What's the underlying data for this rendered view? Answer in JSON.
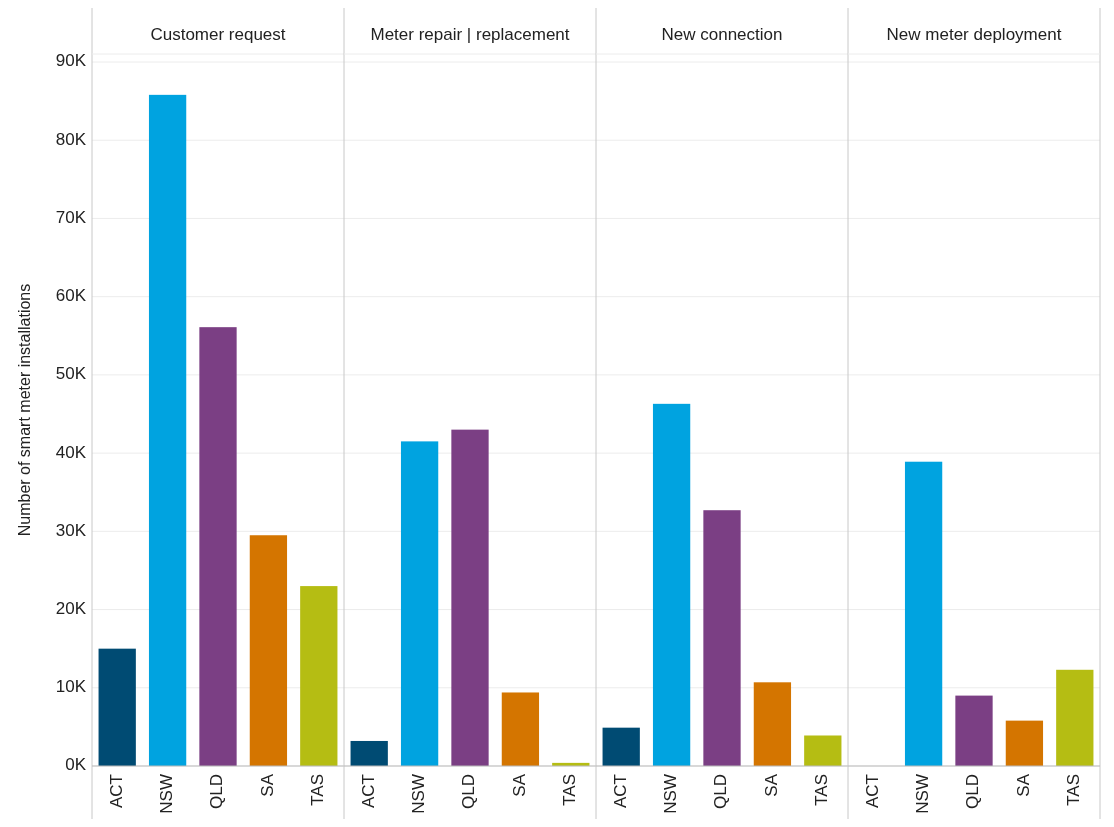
{
  "chart_data": [
    {
      "type": "bar",
      "title": "Customer request",
      "ylabel": "Number of smart meter installations",
      "categories": [
        "ACT",
        "NSW",
        "QLD",
        "SA",
        "TAS"
      ],
      "values": [
        15000,
        85800,
        56100,
        29500,
        23000
      ],
      "colors": [
        "#004b73",
        "#00a3e0",
        "#7b3f84",
        "#d47500",
        "#b5bd13"
      ],
      "ylim": [
        0,
        90000
      ],
      "yticks": [
        {
          "value": 0,
          "label": "0K"
        },
        {
          "value": 10000,
          "label": "10K"
        },
        {
          "value": 20000,
          "label": "20K"
        },
        {
          "value": 30000,
          "label": "30K"
        },
        {
          "value": 40000,
          "label": "40K"
        },
        {
          "value": 50000,
          "label": "50K"
        },
        {
          "value": 60000,
          "label": "60K"
        },
        {
          "value": 70000,
          "label": "70K"
        },
        {
          "value": 80000,
          "label": "80K"
        },
        {
          "value": 90000,
          "label": "90K"
        }
      ],
      "grid": "y"
    },
    {
      "type": "bar",
      "title": "Meter repair | replacement",
      "categories": [
        "ACT",
        "NSW",
        "QLD",
        "SA",
        "TAS"
      ],
      "values": [
        3200,
        41500,
        43000,
        9400,
        400
      ],
      "colors": [
        "#004b73",
        "#00a3e0",
        "#7b3f84",
        "#d47500",
        "#b5bd13"
      ],
      "ylim": [
        0,
        90000
      ],
      "yticks": [
        {
          "value": 0,
          "label": null
        },
        {
          "value": 10000,
          "label": null
        },
        {
          "value": 20000,
          "label": null
        },
        {
          "value": 30000,
          "label": null
        },
        {
          "value": 40000,
          "label": null
        },
        {
          "value": 50000,
          "label": null
        },
        {
          "value": 60000,
          "label": null
        },
        {
          "value": 70000,
          "label": null
        },
        {
          "value": 80000,
          "label": null
        },
        {
          "value": 90000,
          "label": null
        }
      ],
      "grid": "y",
      "tick_labels": "x"
    },
    {
      "type": "bar",
      "title": "New connection",
      "categories": [
        "ACT",
        "NSW",
        "QLD",
        "SA",
        "TAS"
      ],
      "values": [
        4900,
        46300,
        32700,
        10700,
        3900
      ],
      "colors": [
        "#004b73",
        "#00a3e0",
        "#7b3f84",
        "#d47500",
        "#b5bd13"
      ],
      "ylim": [
        0,
        90000
      ],
      "yticks": [
        {
          "value": 0,
          "label": null
        },
        {
          "value": 10000,
          "label": null
        },
        {
          "value": 20000,
          "label": null
        },
        {
          "value": 30000,
          "label": null
        },
        {
          "value": 40000,
          "label": null
        },
        {
          "value": 50000,
          "label": null
        },
        {
          "value": 60000,
          "label": null
        },
        {
          "value": 70000,
          "label": null
        },
        {
          "value": 80000,
          "label": null
        },
        {
          "value": 90000,
          "label": null
        }
      ],
      "grid": "y",
      "tick_labels": "x"
    },
    {
      "type": "bar",
      "title": "New meter deployment",
      "categories": [
        "ACT",
        "NSW",
        "QLD",
        "SA",
        "TAS"
      ],
      "values": [
        0,
        38900,
        9000,
        5800,
        12300
      ],
      "colors": [
        "#004b73",
        "#00a3e0",
        "#7b3f84",
        "#d47500",
        "#b5bd13"
      ],
      "ylim": [
        0,
        90000
      ],
      "yticks": [
        {
          "value": 0,
          "label": null
        },
        {
          "value": 10000,
          "label": null
        },
        {
          "value": 20000,
          "label": null
        },
        {
          "value": 30000,
          "label": null
        },
        {
          "value": 40000,
          "label": null
        },
        {
          "value": 50000,
          "label": null
        },
        {
          "value": 60000,
          "label": null
        },
        {
          "value": 70000,
          "label": null
        },
        {
          "value": 80000,
          "label": null
        },
        {
          "value": 90000,
          "label": null
        }
      ],
      "grid": "y",
      "tick_labels": "x"
    }
  ]
}
